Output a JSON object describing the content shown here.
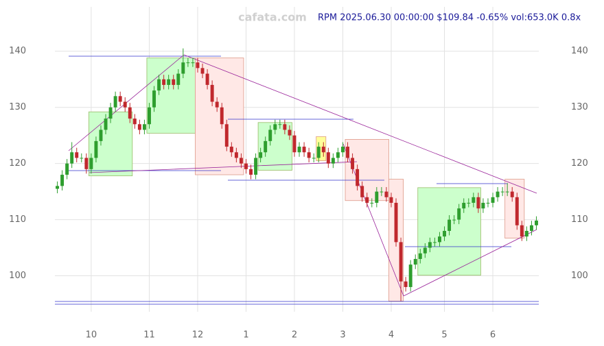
{
  "chart_data": {
    "type": "candlestick",
    "title": "RPM 2025.06.30 00:00:00 $109.84 -0.65% vol:653.0K 0.8x",
    "watermark": "cafata.com",
    "categories": [
      null,
      null,
      null,
      null,
      null,
      null,
      null,
      "10",
      null,
      null,
      null,
      null,
      null,
      null,
      null,
      null,
      null,
      null,
      null,
      "11",
      null,
      null,
      null,
      null,
      null,
      null,
      null,
      null,
      null,
      "12",
      null,
      null,
      null,
      null,
      null,
      null,
      null,
      null,
      null,
      "1",
      null,
      null,
      null,
      null,
      null,
      null,
      null,
      null,
      null,
      "2",
      null,
      null,
      null,
      null,
      null,
      null,
      null,
      null,
      null,
      "3",
      null,
      null,
      null,
      null,
      null,
      null,
      null,
      null,
      null,
      "4",
      null,
      null,
      null,
      null,
      null,
      null,
      null,
      null,
      null,
      null,
      "5",
      null,
      null,
      null,
      null,
      null,
      null,
      null,
      null,
      null,
      "6",
      null,
      null,
      null,
      null,
      null,
      null,
      null,
      null,
      null
    ],
    "open": [
      115.5,
      116,
      118,
      120,
      122,
      121,
      121,
      119,
      121,
      124,
      126,
      128,
      130,
      132,
      131,
      130,
      128,
      127,
      126,
      127,
      130,
      133,
      135,
      134,
      135,
      134,
      136,
      138,
      138,
      138,
      137,
      136,
      134,
      131,
      130,
      127,
      123,
      122,
      121,
      120,
      119,
      118,
      121,
      122,
      124,
      126,
      127,
      127,
      126,
      125,
      122,
      123,
      122,
      121,
      121,
      123,
      122,
      120,
      121,
      122,
      123,
      121,
      119,
      116,
      114,
      113,
      113,
      115,
      115,
      114,
      113,
      106,
      99,
      98,
      102,
      103,
      104,
      105,
      106,
      106,
      107,
      108,
      110,
      110,
      112,
      113,
      113,
      114,
      112,
      113,
      113,
      114,
      115,
      115,
      115,
      114,
      109,
      107,
      108,
      109
    ],
    "high": [
      116.8,
      118.8,
      120.8,
      123.8,
      122.8,
      121.8,
      121.8,
      121.8,
      124.8,
      126.8,
      128.8,
      130.8,
      132.8,
      132.8,
      131.8,
      130.8,
      128.8,
      127.8,
      127.8,
      130.8,
      133.8,
      135.8,
      135.8,
      135.8,
      135.8,
      136.8,
      140.5,
      138.8,
      138.8,
      138.8,
      137.8,
      136.8,
      134.8,
      131.8,
      130.8,
      127.8,
      123.8,
      122.8,
      121.8,
      120.8,
      119.8,
      121.8,
      122.8,
      124.8,
      126.8,
      127.8,
      127.8,
      127.8,
      126.8,
      125.8,
      123.8,
      123.8,
      122.8,
      121.8,
      123.8,
      123.8,
      122.8,
      121.8,
      122.8,
      123.8,
      123.8,
      121.8,
      119.8,
      116.8,
      114.8,
      113.8,
      115.8,
      115.8,
      115.8,
      114.8,
      113.8,
      106.8,
      99.8,
      102.8,
      103.8,
      104.8,
      105.8,
      106.8,
      106.8,
      107.8,
      108.8,
      110.8,
      110.8,
      112.8,
      113.8,
      113.8,
      114.8,
      114.8,
      113.8,
      113.8,
      114.8,
      115.8,
      115.8,
      116.5,
      115.8,
      114.8,
      109.8,
      108.8,
      109.8,
      110.6
    ],
    "low": [
      114.7,
      115.2,
      117.2,
      119.2,
      120.2,
      120.2,
      118.2,
      118.2,
      120.2,
      123.2,
      125.2,
      127.2,
      129.2,
      130.2,
      129.2,
      127.2,
      126.2,
      125.2,
      125.2,
      126.2,
      129.2,
      132.2,
      133.2,
      133.2,
      133.2,
      133.2,
      135.2,
      137.2,
      137.2,
      136.2,
      135.2,
      133.2,
      130.2,
      129.2,
      126.2,
      122.2,
      121.2,
      120.2,
      119.2,
      118.2,
      117.2,
      117.2,
      120.2,
      121.2,
      123.2,
      125.2,
      126.2,
      125.2,
      124.2,
      121.2,
      121.2,
      121.2,
      120.2,
      120.2,
      120.2,
      121.2,
      119.2,
      119.2,
      120.2,
      121.2,
      120.2,
      118.2,
      115.2,
      113.2,
      112.2,
      112.2,
      112.2,
      114.2,
      113.2,
      112.2,
      105.2,
      95.5,
      97.2,
      97.2,
      101.2,
      102.2,
      103.2,
      104.2,
      105.2,
      105.2,
      106.2,
      107.2,
      109.2,
      109.2,
      111.2,
      112.2,
      112.2,
      111.2,
      111.2,
      112.2,
      112.2,
      113.2,
      114.2,
      114.2,
      113.2,
      108.2,
      106.2,
      106.2,
      107.2,
      108.2
    ],
    "close": [
      116,
      118,
      120,
      122,
      121,
      121,
      119,
      121,
      124,
      126,
      128,
      130,
      132,
      131,
      130,
      128,
      127,
      126,
      127,
      130,
      133,
      135,
      134,
      135,
      134,
      136,
      138,
      138,
      138,
      137,
      136,
      134,
      131,
      130,
      127,
      123,
      122,
      121,
      120,
      119,
      118,
      121,
      122,
      124,
      126,
      127,
      127,
      126,
      125,
      122,
      123,
      122,
      121,
      121,
      123,
      122,
      120,
      121,
      122,
      123,
      121,
      119,
      116,
      114,
      113,
      113,
      115,
      115,
      114,
      113,
      106,
      99,
      98,
      102,
      103,
      104,
      105,
      106,
      106,
      107,
      108,
      110,
      110,
      112,
      113,
      113,
      114,
      112,
      113,
      113,
      114,
      115,
      115,
      115,
      114,
      109,
      107,
      108,
      109,
      109.84
    ],
    "up_color": "#2e9e2e",
    "down_color": "#c0282d",
    "boxes": [
      {
        "start": 7,
        "end": 15,
        "low": 117.8,
        "high": 129.2,
        "color": "#ccffcc"
      },
      {
        "start": 19,
        "end": 28,
        "low": 125.4,
        "high": 138.8,
        "color": "#ccffcc"
      },
      {
        "start": 29,
        "end": 38,
        "low": 118,
        "high": 138.8,
        "color": "#ffe8e6"
      },
      {
        "start": 42,
        "end": 48,
        "low": 118.8,
        "high": 127.3,
        "color": "#ccffcc"
      },
      {
        "start": 54,
        "end": 55,
        "low": 120.5,
        "high": 124.8,
        "color": "#ffff99"
      },
      {
        "start": 60,
        "end": 68,
        "low": 113.4,
        "high": 124.3,
        "color": "#ffe8e6"
      },
      {
        "start": 69,
        "end": 71,
        "low": 95.5,
        "high": 117.2,
        "color": "#ffe8e6"
      },
      {
        "start": 75,
        "end": 87,
        "low": 100.1,
        "high": 115.7,
        "color": "#ccffcc"
      },
      {
        "start": 93,
        "end": 96,
        "low": 106.7,
        "high": 117.2,
        "color": "#ffe8e6"
      }
    ],
    "ylim": [
      93.6,
      147.9
    ],
    "yticks": [
      100,
      110,
      120,
      130,
      140
    ],
    "grid": true
  }
}
